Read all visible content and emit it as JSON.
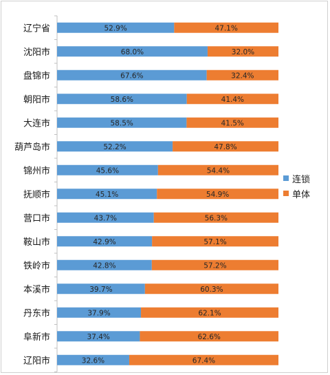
{
  "colors": {
    "chain": "#5b9bd5",
    "single": "#ed7d31",
    "axis": "#bfbfbf"
  },
  "chart_data": {
    "type": "bar",
    "stacked": "percent",
    "orientation": "horizontal",
    "xlim": [
      0,
      100
    ],
    "categories": [
      "辽宁省",
      "沈阳市",
      "盘锦市",
      "朝阳市",
      "大连市",
      "葫芦岛市",
      "锦州市",
      "抚顺市",
      "营口市",
      "鞍山市",
      "铁岭市",
      "本溪市",
      "丹东市",
      "阜新市",
      "辽阳市"
    ],
    "series": [
      {
        "name": "连锁",
        "values": [
          52.9,
          68.0,
          67.6,
          58.6,
          58.5,
          52.2,
          45.6,
          45.1,
          43.7,
          42.9,
          42.8,
          39.7,
          37.9,
          37.4,
          32.6
        ],
        "labels": [
          "52.9%",
          "68.0%",
          "67.6%",
          "58.6%",
          "58.5%",
          "52.2%",
          "45.6%",
          "45.1%",
          "43.7%",
          "42.9%",
          "42.8%",
          "39.7%",
          "37.9%",
          "37.4%",
          "32.6%"
        ]
      },
      {
        "name": "单体",
        "values": [
          47.1,
          32.0,
          32.4,
          41.4,
          41.5,
          47.8,
          54.4,
          54.9,
          56.3,
          57.1,
          57.2,
          60.3,
          62.1,
          62.6,
          67.4
        ],
        "labels": [
          "47.1%",
          "32.0%",
          "32.4%",
          "41.4%",
          "41.5%",
          "47.8%",
          "54.4%",
          "54.9%",
          "56.3%",
          "57.1%",
          "57.2%",
          "60.3%",
          "62.1%",
          "62.6%",
          "67.4%"
        ]
      }
    ],
    "legend_position": "right",
    "grid": false
  }
}
